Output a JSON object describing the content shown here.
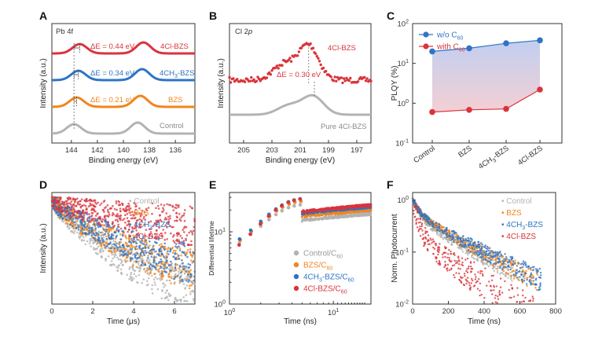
{
  "colors": {
    "control": "#b3b3b3",
    "bzs": "#f0861d",
    "ch3": "#2f74c4",
    "cl": "#d9343c",
    "pure": "#b3b3b3",
    "fill": "#c9cce8"
  },
  "chart_data": [
    {
      "panel": "A",
      "type": "line",
      "title": "Pb 4f",
      "xlabel": "Binding energy (eV)",
      "ylabel": "Intensity (a.u.)",
      "xlim": [
        145.5,
        134.5
      ],
      "xticks": [
        "144",
        "142",
        "140",
        "138",
        "136"
      ],
      "peaks_eV": [
        143.8,
        138.9
      ],
      "series": [
        {
          "name": "4Cl-BZS",
          "label": "4Cl-BZS",
          "shift_eV": 0.44,
          "annotation": "ΔE = 0.44 eV"
        },
        {
          "name": "4CH3-BZS",
          "label": "4CH",
          "label_sub": "3",
          "label_post": "-BZS",
          "shift_eV": 0.34,
          "annotation": "ΔE = 0.34 eV"
        },
        {
          "name": "BZS",
          "label": "BZS",
          "shift_eV": 0.21,
          "annotation": "ΔE = 0.21 eV"
        },
        {
          "name": "Control",
          "label": "Control",
          "shift_eV": 0.0
        }
      ]
    },
    {
      "panel": "B",
      "type": "line",
      "title_pre": "Cl 2",
      "title_it": "p",
      "xlabel": "Binding energy (eV)",
      "ylabel": "Intensity (a.u.)",
      "xlim": [
        206,
        196
      ],
      "xticks": [
        "205",
        "203",
        "201",
        "199",
        "197"
      ],
      "series": [
        {
          "name": "4Cl-BZS",
          "label": "4Cl-BZS",
          "peak_eV": 200.3
        },
        {
          "name": "Pure 4Cl-BZS",
          "label": "Pure 4Cl-BZS",
          "peak_eV": 200.0
        }
      ],
      "annotation": "ΔE = 0.30 eV"
    },
    {
      "panel": "C",
      "type": "line",
      "ylabel": "PLQY (%)",
      "yscale": "log",
      "ylim": [
        0.1,
        100
      ],
      "yticks": [
        "10",
        "10",
        "10",
        "10"
      ],
      "yticks_exp": [
        "-1",
        "0",
        "1",
        "2"
      ],
      "categories": [
        "Control",
        "BZS",
        "4CH3-BZS",
        "4Cl-BZS"
      ],
      "category_labels": [
        {
          "pre": "Control",
          "sub": "",
          "post": ""
        },
        {
          "pre": "BZS",
          "sub": "",
          "post": ""
        },
        {
          "pre": "4CH",
          "sub": "3",
          "post": "-BZS"
        },
        {
          "pre": "4Cl-BZS",
          "sub": "",
          "post": ""
        }
      ],
      "series": [
        {
          "name": "w/o C60",
          "label_pre": "w/o C",
          "label_sub": "60",
          "values": [
            20,
            24,
            32,
            38
          ]
        },
        {
          "name": "with C60",
          "label_pre": "with C",
          "label_sub": "60",
          "values": [
            0.6,
            0.68,
            0.72,
            2.2
          ]
        }
      ]
    },
    {
      "panel": "D",
      "type": "scatter",
      "xlabel_pre": "Time (",
      "xlabel_mu": "μ",
      "xlabel_post": "s)",
      "ylabel": "Intensity (a.u.)",
      "xlim": [
        0,
        7
      ],
      "xticks": [
        "0",
        "2",
        "4",
        "6"
      ],
      "series": [
        {
          "name": "Control",
          "label": "Control",
          "tau_us": 1.3
        },
        {
          "name": "BZS",
          "label": "BZS",
          "tau_us": 1.7
        },
        {
          "name": "4CH3-BZS",
          "label_pre": "4CH",
          "label_sub": "3",
          "label_post": "-BZS",
          "tau_us": 1.9
        },
        {
          "name": "4Cl-BZS",
          "label": "4Cl-BZS",
          "tau_us": 5.5
        }
      ]
    },
    {
      "panel": "E",
      "type": "scatter",
      "xlabel": "Time (ns)",
      "ylabel": "Differential lifetime",
      "xscale": "log",
      "yscale": "log",
      "xlim": [
        1,
        20
      ],
      "ylim": [
        1,
        30
      ],
      "xticks": [
        "10",
        "10"
      ],
      "xticks_exp": [
        "0",
        "1"
      ],
      "yticks": [
        "10",
        "10"
      ],
      "yticks_exp": [
        "0",
        "1"
      ],
      "series": [
        {
          "name": "Control/C60",
          "label_pre": "Control/C",
          "label_sub": "60"
        },
        {
          "name": "BZS/C60",
          "label_pre": "BZS/C",
          "label_sub": "60"
        },
        {
          "name": "4CH3-BZS/C60",
          "label_pre": "4CH",
          "label_mid_sub": "3",
          "label_mid": "-BZS/C",
          "label_sub": "60"
        },
        {
          "name": "4Cl-BZS/C60",
          "label_pre": "4Cl-BZS/C",
          "label_sub": "60"
        }
      ]
    },
    {
      "panel": "F",
      "type": "scatter",
      "xlabel": "Time (ns)",
      "ylabel": "Norm. Photocurrent",
      "yscale": "log",
      "xlim": [
        0,
        800
      ],
      "ylim": [
        0.01,
        1
      ],
      "xticks": [
        "0",
        "200",
        "400",
        "600",
        "800"
      ],
      "yticks": [
        "10",
        "10",
        "10"
      ],
      "yticks_exp": [
        "0",
        "-1",
        "-2"
      ],
      "series": [
        {
          "name": "Control",
          "label": "Control"
        },
        {
          "name": "BZS",
          "label": "BZS"
        },
        {
          "name": "4CH3-BZS",
          "label_pre": "4CH",
          "label_sub": "3",
          "label_post": "-BZS"
        },
        {
          "name": "4Cl-BZS",
          "label": "4Cl-BZS"
        }
      ]
    }
  ]
}
